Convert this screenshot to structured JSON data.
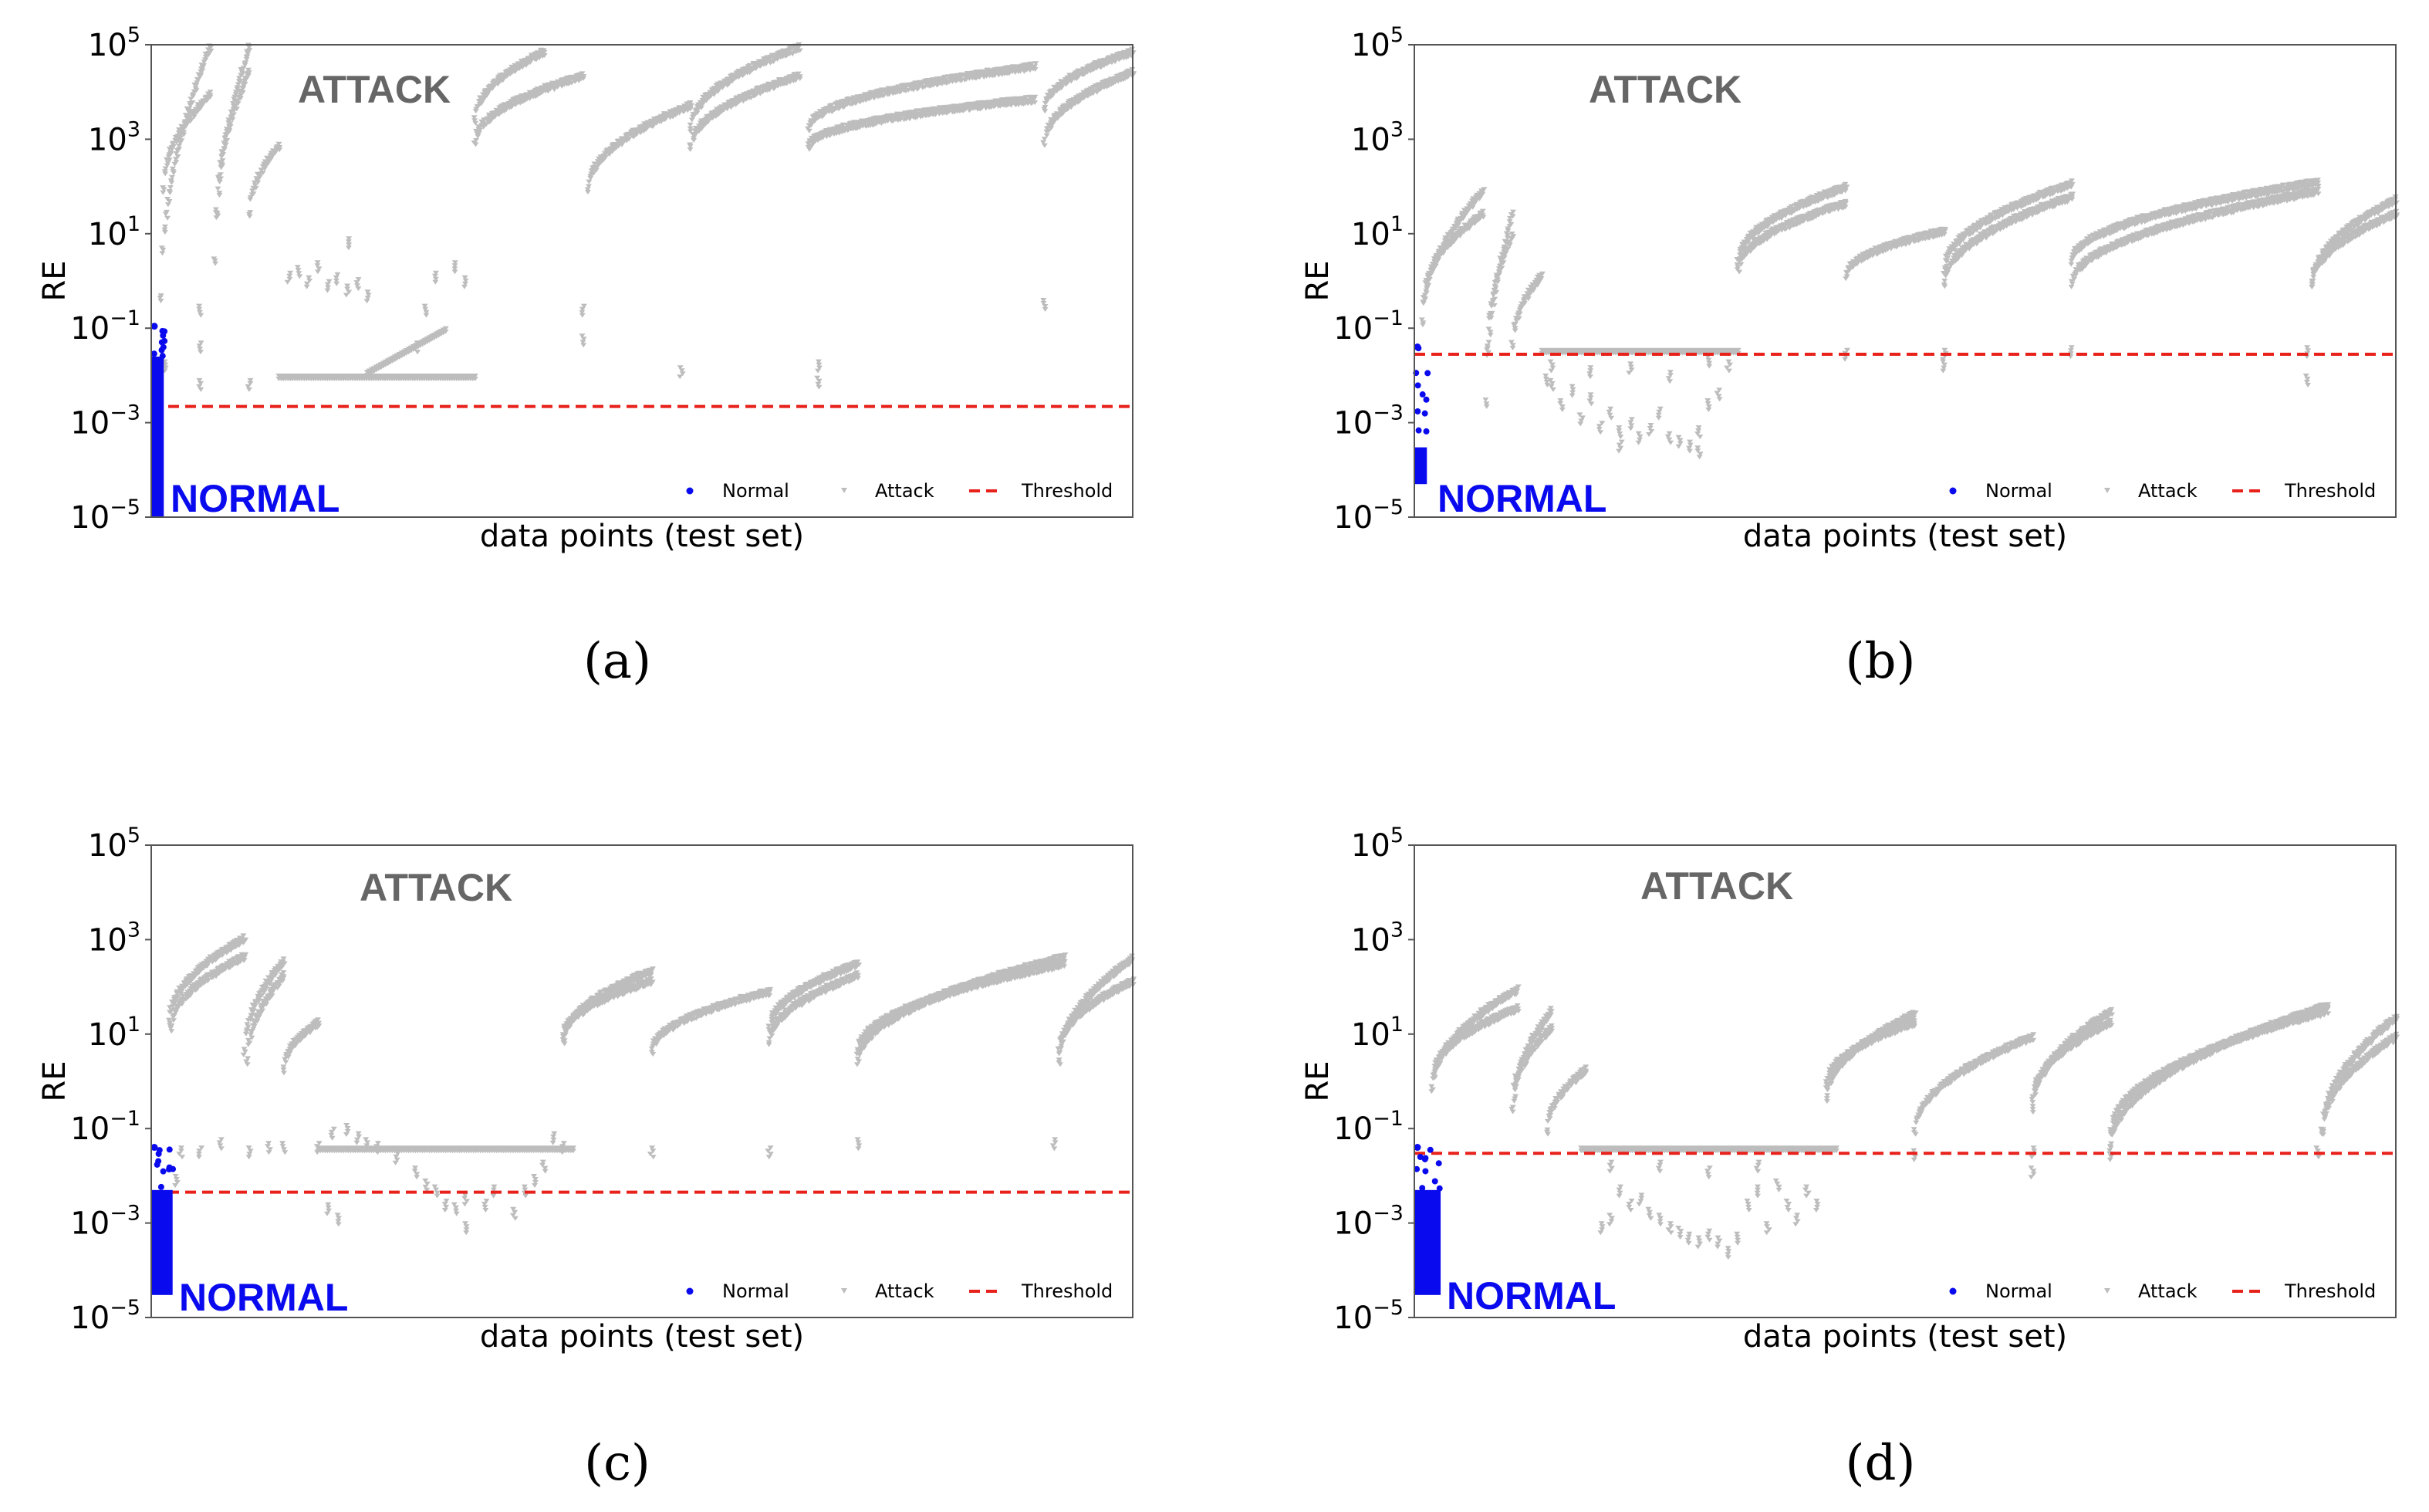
{
  "colors": {
    "normal": "#0a0aee",
    "attack": "#bdbdbd",
    "threshold": "#e8211b",
    "attack_label": "#666666",
    "frame": "#555555"
  },
  "legend": {
    "normal": "Normal",
    "attack": "Attack",
    "threshold": "Threshold"
  },
  "chart_data": [
    {
      "id": "a",
      "type": "scatter",
      "caption": "(a)",
      "ylabel": "RE",
      "xlabel": "data points (test set)",
      "yscale": "log",
      "ylim": [
        1e-05,
        100000.0
      ],
      "yticks": [
        {
          "base": "10",
          "exp": "5"
        },
        {
          "base": "10",
          "exp": "3"
        },
        {
          "base": "10",
          "exp": "1"
        },
        {
          "base": "10",
          "exp": "−1"
        },
        {
          "base": "10",
          "exp": "−3"
        },
        {
          "base": "10",
          "exp": "−5"
        }
      ],
      "region_labels": {
        "attack": "ATTACK",
        "normal": "NORMAL"
      },
      "threshold": 0.0022,
      "normal_band": {
        "x": [
          0,
          1.2
        ],
        "y": [
          1e-05,
          0.025
        ],
        "outlier_max": 0.11
      },
      "attack_arcs": [
        {
          "x": [
            1,
            6
          ],
          "y": [
            0.5,
            100000
          ]
        },
        {
          "x": [
            1.2,
            6
          ],
          "y": [
            100,
            10000
          ]
        },
        {
          "x": [
            6.5,
            10
          ],
          "y": [
            3,
            100000
          ]
        },
        {
          "x": [
            6.7,
            10
          ],
          "y": [
            30,
            30000
          ]
        },
        {
          "x": [
            10,
            13
          ],
          "y": [
            30,
            800
          ]
        },
        {
          "x": [
            33,
            40
          ],
          "y": [
            3000,
            80000
          ]
        },
        {
          "x": [
            33,
            44
          ],
          "y": [
            1000,
            25000
          ]
        },
        {
          "x": [
            44.5,
            55
          ],
          "y": [
            100,
            6000
          ]
        },
        {
          "x": [
            55,
            66
          ],
          "y": [
            2000,
            100000
          ]
        },
        {
          "x": [
            55,
            66
          ],
          "y": [
            800,
            25000
          ]
        },
        {
          "x": [
            67,
            90
          ],
          "y": [
            2000,
            40000
          ]
        },
        {
          "x": [
            67,
            90
          ],
          "y": [
            800,
            8000
          ]
        },
        {
          "x": [
            91,
            100
          ],
          "y": [
            5000,
            80000
          ]
        },
        {
          "x": [
            91,
            100
          ],
          "y": [
            1000,
            30000
          ]
        }
      ],
      "attack_flat": [
        {
          "x": [
            13,
            33
          ],
          "y": [
            0.01,
            0.01
          ]
        },
        {
          "x": [
            22,
            30
          ],
          "y": [
            0.012,
            0.1
          ]
        }
      ],
      "attack_scatter": [
        [
          1.5,
          0.02
        ],
        [
          5,
          0.3
        ],
        [
          5,
          0.05
        ],
        [
          5,
          0.008
        ],
        [
          10,
          0.008
        ],
        [
          14,
          1.5
        ],
        [
          15,
          2
        ],
        [
          16,
          1.2
        ],
        [
          17,
          2.5
        ],
        [
          18,
          1
        ],
        [
          19,
          1.4
        ],
        [
          20,
          0.8
        ],
        [
          21,
          1.1
        ],
        [
          22,
          0.6
        ],
        [
          20,
          8
        ],
        [
          27,
          0.05
        ],
        [
          28,
          0.3
        ],
        [
          29,
          1.5
        ],
        [
          31,
          2.5
        ],
        [
          32,
          1.2
        ],
        [
          44,
          0.3
        ],
        [
          44,
          0.07
        ],
        [
          54,
          0.015
        ],
        [
          68,
          0.02
        ],
        [
          68,
          0.009
        ],
        [
          91,
          0.4
        ]
      ]
    },
    {
      "id": "b",
      "type": "scatter",
      "caption": "(b)",
      "ylabel": "RE",
      "xlabel": "data points (test set)",
      "yscale": "log",
      "ylim": [
        1e-05,
        100000.0
      ],
      "yticks": [
        {
          "base": "10",
          "exp": "5"
        },
        {
          "base": "10",
          "exp": "3"
        },
        {
          "base": "10",
          "exp": "1"
        },
        {
          "base": "10",
          "exp": "−1"
        },
        {
          "base": "10",
          "exp": "−3"
        },
        {
          "base": "10",
          "exp": "−5"
        }
      ],
      "region_labels": {
        "attack": "ATTACK",
        "normal": "NORMAL"
      },
      "threshold": 0.028,
      "normal_band": {
        "x": [
          0,
          1.2
        ],
        "y": [
          5e-05,
          0.0003
        ],
        "outlier_max": 0.04
      },
      "attack_arcs": [
        {
          "x": [
            0.8,
            7
          ],
          "y": [
            0.15,
            90
          ]
        },
        {
          "x": [
            1,
            7
          ],
          "y": [
            0.5,
            30
          ]
        },
        {
          "x": [
            7.3,
            10
          ],
          "y": [
            0.003,
            30
          ]
        },
        {
          "x": [
            7.5,
            10
          ],
          "y": [
            0.05,
            10
          ]
        },
        {
          "x": [
            10,
            13
          ],
          "y": [
            0.05,
            1.5
          ]
        },
        {
          "x": [
            33,
            44
          ],
          "y": [
            3,
            110
          ]
        },
        {
          "x": [
            33,
            44
          ],
          "y": [
            2,
            50
          ]
        },
        {
          "x": [
            44,
            54
          ],
          "y": [
            1.5,
            13
          ]
        },
        {
          "x": [
            54,
            67
          ],
          "y": [
            2,
            130
          ]
        },
        {
          "x": [
            54,
            67
          ],
          "y": [
            1,
            70
          ]
        },
        {
          "x": [
            67,
            92
          ],
          "y": [
            3,
            140
          ]
        },
        {
          "x": [
            67,
            92
          ],
          "y": [
            1,
            90
          ]
        },
        {
          "x": [
            91.5,
            100
          ],
          "y": [
            1,
            60
          ]
        },
        {
          "x": [
            91.5,
            100
          ],
          "y": [
            1,
            30
          ]
        }
      ],
      "attack_flat": [
        {
          "x": [
            13,
            33
          ],
          "y": [
            0.035,
            0.035
          ]
        }
      ],
      "attack_scatter": [
        [
          14,
          0.008
        ],
        [
          15,
          0.003
        ],
        [
          16,
          0.006
        ],
        [
          17,
          0.0015
        ],
        [
          18,
          0.004
        ],
        [
          19,
          0.001
        ],
        [
          20,
          0.002
        ],
        [
          21,
          0.0008
        ],
        [
          22,
          0.0012
        ],
        [
          23,
          0.0006
        ],
        [
          24,
          0.0009
        ],
        [
          25,
          0.002
        ],
        [
          26,
          0.0006
        ],
        [
          27,
          0.0005
        ],
        [
          28,
          0.0004
        ],
        [
          29,
          0.0008
        ],
        [
          30,
          0.003
        ],
        [
          31,
          0.005
        ],
        [
          32,
          0.02
        ],
        [
          14,
          0.02
        ],
        [
          18,
          0.015
        ],
        [
          22,
          0.018
        ],
        [
          26,
          0.012
        ],
        [
          30,
          0.025
        ],
        [
          13.5,
          0.01
        ],
        [
          21,
          0.0004
        ],
        [
          29,
          0.0003
        ],
        [
          44,
          0.035
        ],
        [
          54,
          0.02
        ],
        [
          54,
          0.035
        ],
        [
          67,
          0.04
        ],
        [
          91,
          0.01
        ],
        [
          91,
          0.04
        ]
      ]
    },
    {
      "id": "c",
      "type": "scatter",
      "caption": "(c)",
      "ylabel": "RE",
      "xlabel": "data points (test set)",
      "yscale": "log",
      "ylim": [
        1e-05,
        100000.0
      ],
      "yticks": [
        {
          "base": "10",
          "exp": "5"
        },
        {
          "base": "10",
          "exp": "3"
        },
        {
          "base": "10",
          "exp": "1"
        },
        {
          "base": "10",
          "exp": "−1"
        },
        {
          "base": "10",
          "exp": "−3"
        },
        {
          "base": "10",
          "exp": "−5"
        }
      ],
      "region_labels": {
        "attack": "ATTACK",
        "normal": "NORMAL"
      },
      "threshold": 0.0045,
      "normal_band": {
        "x": [
          0,
          2.1
        ],
        "y": [
          3e-05,
          0.005
        ],
        "outlier_max": 0.04
      },
      "attack_arcs": [
        {
          "x": [
            1.8,
            9.5
          ],
          "y": [
            20,
            1200
          ]
        },
        {
          "x": [
            2,
            9.5
          ],
          "y": [
            15,
            500
          ]
        },
        {
          "x": [
            9.5,
            13.5
          ],
          "y": [
            5,
            400
          ]
        },
        {
          "x": [
            9.8,
            13.5
          ],
          "y": [
            3,
            200
          ]
        },
        {
          "x": [
            13.5,
            17
          ],
          "y": [
            2,
            20
          ]
        },
        {
          "x": [
            42,
            51
          ],
          "y": [
            8,
            250
          ]
        },
        {
          "x": [
            42,
            51
          ],
          "y": [
            10,
            150
          ]
        },
        {
          "x": [
            51,
            63
          ],
          "y": [
            5,
            90
          ]
        },
        {
          "x": [
            63,
            72
          ],
          "y": [
            15,
            350
          ]
        },
        {
          "x": [
            63,
            72
          ],
          "y": [
            8,
            200
          ]
        },
        {
          "x": [
            72,
            93
          ],
          "y": [
            3,
            480
          ]
        },
        {
          "x": [
            72,
            93
          ],
          "y": [
            5,
            350
          ]
        },
        {
          "x": [
            92.5,
            100
          ],
          "y": [
            3,
            450
          ]
        },
        {
          "x": [
            92.5,
            100
          ],
          "y": [
            5,
            150
          ]
        }
      ],
      "attack_flat": [
        {
          "x": [
            17,
            43
          ],
          "y": [
            0.04,
            0.04
          ]
        }
      ],
      "attack_scatter": [
        [
          2.5,
          0.01
        ],
        [
          3,
          0.04
        ],
        [
          5,
          0.04
        ],
        [
          7,
          0.06
        ],
        [
          10,
          0.04
        ],
        [
          12,
          0.05
        ],
        [
          13.5,
          0.05
        ],
        [
          17,
          0.05
        ],
        [
          18,
          0.0025
        ],
        [
          19,
          0.0015
        ],
        [
          18.5,
          0.1
        ],
        [
          20,
          0.12
        ],
        [
          21,
          0.08
        ],
        [
          22,
          0.06
        ],
        [
          23,
          0.05
        ],
        [
          25,
          0.03
        ],
        [
          27,
          0.015
        ],
        [
          28,
          0.008
        ],
        [
          29,
          0.006
        ],
        [
          30,
          0.003
        ],
        [
          31,
          0.0025
        ],
        [
          32,
          0.004
        ],
        [
          32,
          0.001
        ],
        [
          34,
          0.003
        ],
        [
          35,
          0.006
        ],
        [
          37,
          0.002
        ],
        [
          38,
          0.006
        ],
        [
          39,
          0.01
        ],
        [
          40,
          0.02
        ],
        [
          41,
          0.08
        ],
        [
          42,
          0.05
        ],
        [
          51,
          0.04
        ],
        [
          63,
          0.04
        ],
        [
          72,
          0.06
        ],
        [
          92,
          0.06
        ]
      ]
    },
    {
      "id": "d",
      "type": "scatter",
      "caption": "(d)",
      "ylabel": "RE",
      "xlabel": "data points (test set)",
      "yscale": "log",
      "ylim": [
        1e-05,
        100000.0
      ],
      "yticks": [
        {
          "base": "10",
          "exp": "5"
        },
        {
          "base": "10",
          "exp": "3"
        },
        {
          "base": "10",
          "exp": "1"
        },
        {
          "base": "10",
          "exp": "−1"
        },
        {
          "base": "10",
          "exp": "−3"
        },
        {
          "base": "10",
          "exp": "−5"
        }
      ],
      "region_labels": {
        "attack": "ATTACK",
        "normal": "NORMAL"
      },
      "threshold": 0.03,
      "normal_band": {
        "x": [
          0,
          2.6
        ],
        "y": [
          3e-05,
          0.005
        ],
        "outlier_max": 0.04
      },
      "attack_arcs": [
        {
          "x": [
            1.8,
            10.5
          ],
          "y": [
            0.8,
            100
          ]
        },
        {
          "x": [
            2,
            10.5
          ],
          "y": [
            1.5,
            40
          ]
        },
        {
          "x": [
            10,
            14
          ],
          "y": [
            0.3,
            35
          ]
        },
        {
          "x": [
            10.2,
            14
          ],
          "y": [
            0.5,
            15
          ]
        },
        {
          "x": [
            13.5,
            17.5
          ],
          "y": [
            0.1,
            2
          ]
        },
        {
          "x": [
            42,
            51
          ],
          "y": [
            0.5,
            30
          ]
        },
        {
          "x": [
            42,
            51
          ],
          "y": [
            1,
            20
          ]
        },
        {
          "x": [
            51,
            63
          ],
          "y": [
            0.1,
            10
          ]
        },
        {
          "x": [
            63,
            71
          ],
          "y": [
            0.3,
            35
          ]
        },
        {
          "x": [
            63,
            71
          ],
          "y": [
            0.5,
            20
          ]
        },
        {
          "x": [
            71,
            93
          ],
          "y": [
            0.05,
            45
          ]
        },
        {
          "x": [
            71,
            93
          ],
          "y": [
            0.1,
            35
          ]
        },
        {
          "x": [
            92.5,
            100
          ],
          "y": [
            0.1,
            25
          ]
        },
        {
          "x": [
            92.5,
            100
          ],
          "y": [
            0.1,
            10
          ]
        }
      ],
      "attack_flat": [
        {
          "x": [
            17,
            43
          ],
          "y": [
            0.04,
            0.04
          ]
        }
      ],
      "attack_scatter": [
        [
          19,
          0.001
        ],
        [
          20,
          0.0015
        ],
        [
          21,
          0.006
        ],
        [
          22,
          0.003
        ],
        [
          23,
          0.004
        ],
        [
          24,
          0.002
        ],
        [
          25,
          0.0015
        ],
        [
          26,
          0.001
        ],
        [
          27,
          0.0008
        ],
        [
          28,
          0.0006
        ],
        [
          29,
          0.0005
        ],
        [
          30,
          0.0007
        ],
        [
          31,
          0.0005
        ],
        [
          32,
          0.0003
        ],
        [
          33,
          0.0006
        ],
        [
          34,
          0.003
        ],
        [
          35,
          0.006
        ],
        [
          36,
          0.001
        ],
        [
          37,
          0.008
        ],
        [
          38,
          0.003
        ],
        [
          39,
          0.0015
        ],
        [
          40,
          0.006
        ],
        [
          41,
          0.003
        ],
        [
          35,
          0.02
        ],
        [
          30,
          0.015
        ],
        [
          25,
          0.02
        ],
        [
          20,
          0.02
        ],
        [
          51,
          0.035
        ],
        [
          63,
          0.04
        ],
        [
          63,
          0.015
        ],
        [
          71,
          0.035
        ],
        [
          92,
          0.04
        ]
      ]
    }
  ]
}
